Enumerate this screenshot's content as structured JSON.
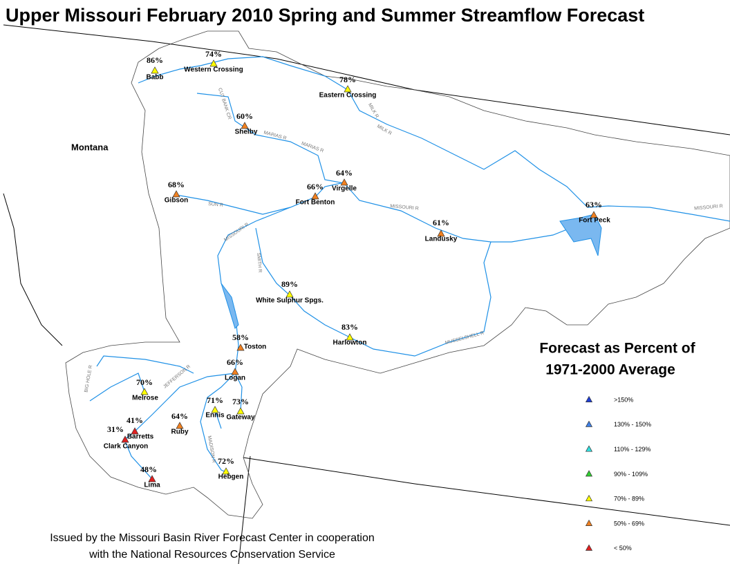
{
  "header": {
    "title": "Upper Missouri February 2010 Spring and Summer Streamflow Forecast"
  },
  "state_label": "Montana",
  "stations": [
    {
      "name": "Babb",
      "percent": "86%",
      "color": "#ffff00"
    },
    {
      "name": "Western Crossing",
      "percent": "74%",
      "color": "#ffff00"
    },
    {
      "name": "Eastern Crossing",
      "percent": "78%",
      "color": "#ffff00"
    },
    {
      "name": "Shelby",
      "percent": "60%",
      "color": "#f08020"
    },
    {
      "name": "Virgelle",
      "percent": "64%",
      "color": "#f08020"
    },
    {
      "name": "Fort Benton",
      "percent": "66%",
      "color": "#f08020"
    },
    {
      "name": "Gibson",
      "percent": "68%",
      "color": "#f08020"
    },
    {
      "name": "Fort Peck",
      "percent": "63%",
      "color": "#f08020"
    },
    {
      "name": "Landusky",
      "percent": "61%",
      "color": "#f08020"
    },
    {
      "name": "White Sulphur Spgs.",
      "percent": "89%",
      "color": "#ffff00"
    },
    {
      "name": "Harlowton",
      "percent": "83%",
      "color": "#ffff00"
    },
    {
      "name": "Toston",
      "percent": "58%",
      "color": "#f08020"
    },
    {
      "name": "Logan",
      "percent": "66%",
      "color": "#f08020"
    },
    {
      "name": "Melrose",
      "percent": "70%",
      "color": "#ffff00"
    },
    {
      "name": "Ennis",
      "percent": "71%",
      "color": "#ffff00"
    },
    {
      "name": "Gateway",
      "percent": "73%",
      "color": "#ffff00"
    },
    {
      "name": "Ruby",
      "percent": "64%",
      "color": "#f08020"
    },
    {
      "name": "Barretts",
      "percent": "41%",
      "color": "#e02020"
    },
    {
      "name": "Clark Canyon",
      "percent": "31%",
      "color": "#e02020"
    },
    {
      "name": "Lima",
      "percent": "48%",
      "color": "#e02020"
    },
    {
      "name": "Hebgen",
      "percent": "72%",
      "color": "#ffff00"
    }
  ],
  "rivers": [
    "CUT BANK CR",
    "MARIAS R",
    "MARIAS R",
    "MILK R",
    "MILK R",
    "SUN R",
    "MISSOURI R",
    "MISSOURI R",
    "MISSOURI R",
    "SMITH R",
    "MUSSELSHELL R",
    "BIG HOLE R",
    "JEFFERSON R",
    "MADISON R"
  ],
  "legend": {
    "title": [
      "Forecast as Percent of",
      "1971-2000 Average"
    ],
    "items": [
      {
        "label": ">150%",
        "color": "#1f3fd6"
      },
      {
        "label": "130% - 150%",
        "color": "#3f80e6"
      },
      {
        "label": "110% - 129%",
        "color": "#30e0e0"
      },
      {
        "label": "90% - 109%",
        "color": "#30d030"
      },
      {
        "label": "70% - 89%",
        "color": "#ffff00"
      },
      {
        "label": "50% - 69%",
        "color": "#f08020"
      },
      {
        "label": "< 50%",
        "color": "#e02020"
      }
    ]
  },
  "footer": [
    "Issued by the Missouri Basin River Forecast Center in cooperation",
    "with the National Resources Conservation Service"
  ]
}
